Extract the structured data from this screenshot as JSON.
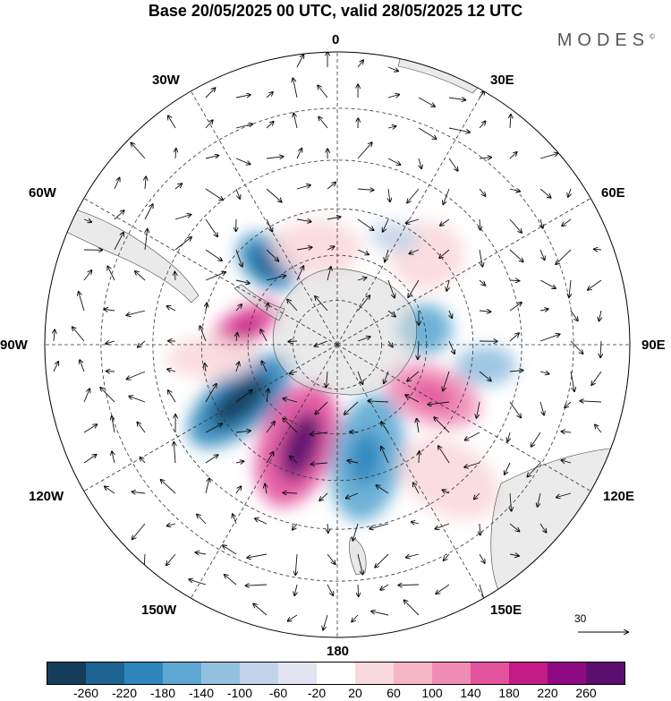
{
  "title": "Base 20/05/2025 00 UTC, valid 28/05/2025 12 UTC",
  "brand": "MODES",
  "brand_mark": "©",
  "longitude_labels": {
    "top": "0",
    "top_right": "30E",
    "upper_right": "60E",
    "right": "90E",
    "lower_right": "120E",
    "bottom_right": "150E",
    "bottom": "180",
    "bottom_left": "150W",
    "lower_left": "120W",
    "left": "90W",
    "upper_left": "60W",
    "top_left": "30W"
  },
  "reference_vector_label": "30",
  "colorbar": {
    "colors": [
      "#173d5c",
      "#1d6492",
      "#2f86bd",
      "#5ea8d3",
      "#94c0e0",
      "#c3d4ea",
      "#e3e4f1",
      "#ffffff",
      "#f9d9dc",
      "#f5b5c4",
      "#f08bb4",
      "#e2529d",
      "#c21b86",
      "#8e0a83",
      "#5a0f6e"
    ],
    "labels": [
      "-260",
      "-220",
      "-180",
      "-140",
      "-100",
      "-60",
      "-20",
      "20",
      "60",
      "100",
      "140",
      "180",
      "220",
      "260"
    ]
  },
  "anomaly_blobs": [
    {
      "name": "neg-atlantic-60w",
      "lon": -40,
      "colat": 24,
      "a": 38,
      "b": 26,
      "rot": 40,
      "color": "#2f86bd"
    },
    {
      "name": "neg-atlantic-core",
      "lon": -42,
      "colat": 24,
      "a": 20,
      "b": 12,
      "rot": 40,
      "color": "#1d6492"
    },
    {
      "name": "pos-patagonia",
      "lon": -78,
      "colat": 21,
      "a": 42,
      "b": 20,
      "rot": -30,
      "color": "#e2529d"
    },
    {
      "name": "pos-patagonia-core",
      "lon": -80,
      "colat": 21,
      "a": 22,
      "b": 10,
      "rot": -30,
      "color": "#c21b86"
    },
    {
      "name": "neg-pacific-120w",
      "lon": -120,
      "colat": 25,
      "a": 70,
      "b": 34,
      "rot": -40,
      "color": "#2f86bd"
    },
    {
      "name": "neg-pacific-core",
      "lon": -120,
      "colat": 25,
      "a": 40,
      "b": 18,
      "rot": -40,
      "color": "#173d5c"
    },
    {
      "name": "pos-pacific-150w",
      "lon": -158,
      "colat": 24,
      "a": 72,
      "b": 42,
      "rot": -70,
      "color": "#e2529d"
    },
    {
      "name": "pos-pacific-core",
      "lon": -160,
      "colat": 24,
      "a": 40,
      "b": 20,
      "rot": -70,
      "color": "#5a0f6e"
    },
    {
      "name": "neg-tasman-160e",
      "lon": 165,
      "colat": 26,
      "a": 72,
      "b": 40,
      "rot": -80,
      "color": "#5ea8d3"
    },
    {
      "name": "neg-tasman-core",
      "lon": 166,
      "colat": 26,
      "a": 30,
      "b": 18,
      "rot": -80,
      "color": "#2f86bd"
    },
    {
      "name": "pos-indian-120e",
      "lon": 118,
      "colat": 24,
      "a": 55,
      "b": 32,
      "rot": 20,
      "color": "#f08bb4"
    },
    {
      "name": "pos-indian-core",
      "lon": 118,
      "colat": 24,
      "a": 26,
      "b": 14,
      "rot": 20,
      "color": "#e2529d"
    },
    {
      "name": "neg-indian-80e",
      "lon": 80,
      "colat": 20,
      "a": 30,
      "b": 28,
      "rot": 0,
      "color": "#5ea8d3"
    },
    {
      "name": "neg-indian-95e",
      "lon": 98,
      "colat": 33,
      "a": 34,
      "b": 22,
      "rot": 0,
      "color": "#94c0e0"
    },
    {
      "name": "pos-indian-60e",
      "lon": 45,
      "colat": 28,
      "a": 42,
      "b": 38,
      "rot": 0,
      "color": "#f9d9dc"
    },
    {
      "name": "neg-atlantic-25e",
      "lon": 28,
      "colat": 27,
      "a": 28,
      "b": 16,
      "rot": 10,
      "color": "#c3d4ea"
    },
    {
      "name": "pos-atlantic-10w",
      "lon": -12,
      "colat": 22,
      "a": 50,
      "b": 32,
      "rot": 0,
      "color": "#f9d9dc"
    },
    {
      "name": "pos-sa-90w",
      "lon": -96,
      "colat": 28,
      "a": 50,
      "b": 24,
      "rot": 0,
      "color": "#f9d9dc"
    },
    {
      "name": "pos-aus-140e",
      "lon": 140,
      "colat": 38,
      "a": 60,
      "b": 40,
      "rot": 30,
      "color": "#f9d9dc"
    }
  ]
}
